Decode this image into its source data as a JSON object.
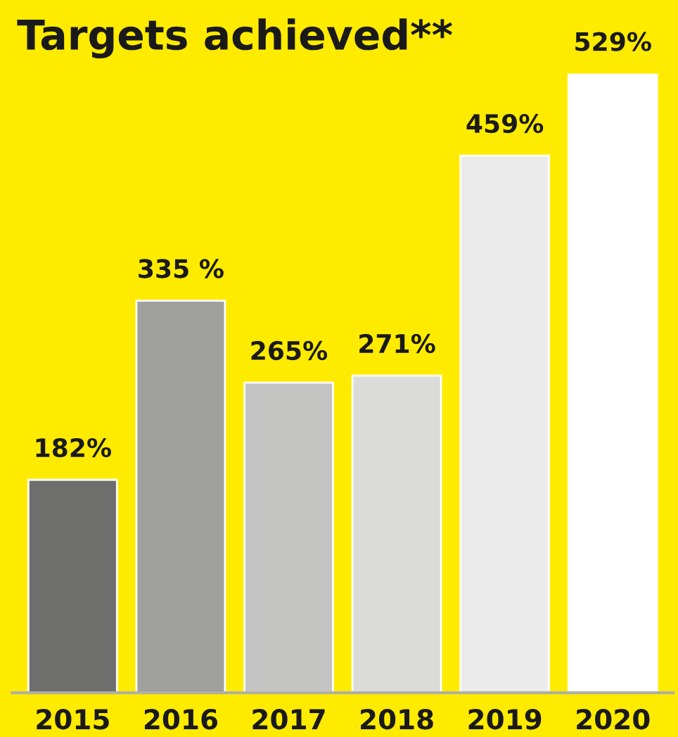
{
  "chart_data": {
    "type": "bar",
    "title": "Targets achieved**",
    "categories": [
      "2015",
      "2016",
      "2017",
      "2018",
      "2019",
      "2020"
    ],
    "values": [
      182,
      335,
      265,
      271,
      459,
      529
    ],
    "value_labels": [
      "182%",
      "335 %",
      "265%",
      "271%",
      "459%",
      "529%"
    ],
    "colors": [
      "#6e6e6c",
      "#a0a09e",
      "#c4c4c2",
      "#dbdbd9",
      "#ebebeb",
      "#ffffff"
    ],
    "tick_labels": "x",
    "grid": false,
    "legend": false
  }
}
